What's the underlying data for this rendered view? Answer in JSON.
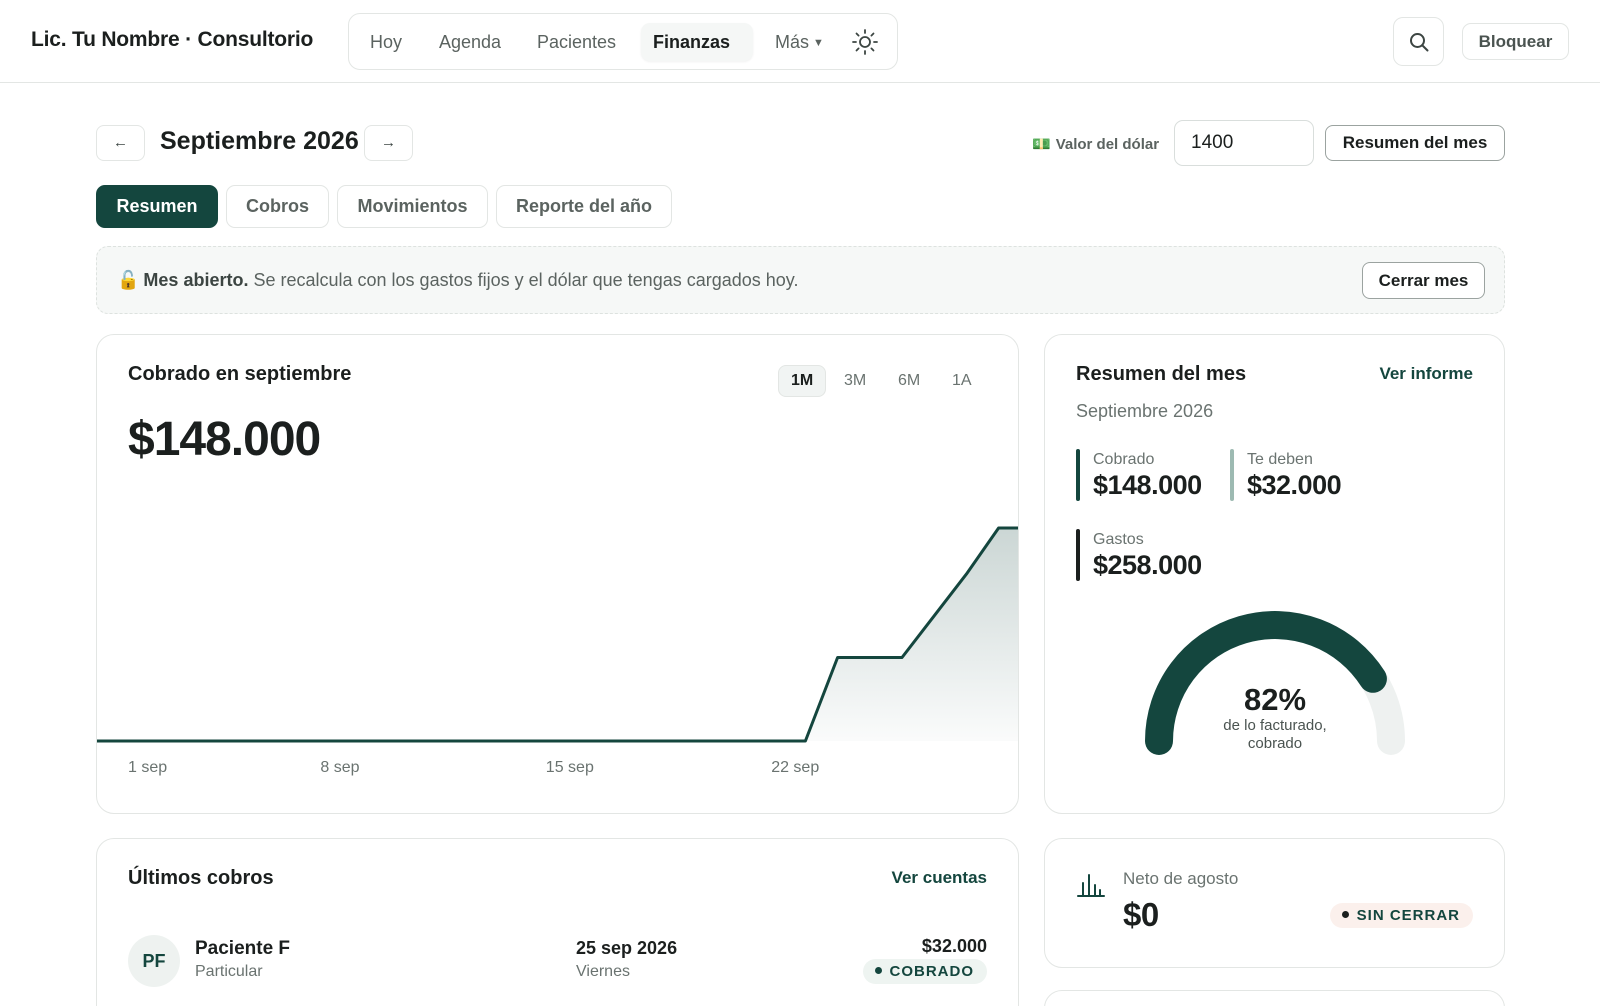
{
  "brand": "Lic. Tu Nombre · Consultorio",
  "nav": {
    "items": [
      {
        "label": "Hoy"
      },
      {
        "label": "Agenda"
      },
      {
        "label": "Pacientes"
      },
      {
        "label": "Finanzas",
        "active": true
      },
      {
        "label": "Más"
      }
    ],
    "theme_icon": "sun-icon"
  },
  "header_actions": {
    "search_icon": "search-icon",
    "lock_label": "Bloquear"
  },
  "month": {
    "prev_label": "←",
    "next_label": "→",
    "title": "Septiembre 2026"
  },
  "dollar": {
    "icon": "💵",
    "label": "Valor del dólar",
    "value": "1400"
  },
  "summary_button": "Resumen del mes",
  "tabs": [
    {
      "label": "Resumen",
      "active": true
    },
    {
      "label": "Cobros"
    },
    {
      "label": "Movimientos"
    },
    {
      "label": "Reporte del año"
    }
  ],
  "banner": {
    "icon": "🔓",
    "strong": "Mes abierto.",
    "text": "Se recalcula con los gastos fijos y el dólar que tengas cargados hoy.",
    "button": "Cerrar mes"
  },
  "collected_card": {
    "title": "Cobrado en septiembre",
    "amount": "$148.000",
    "ranges": [
      {
        "label": "1M",
        "active": true
      },
      {
        "label": "3M"
      },
      {
        "label": "6M"
      },
      {
        "label": "1A"
      }
    ],
    "x_ticks": [
      "1 sep",
      "8 sep",
      "15 sep",
      "22 sep"
    ]
  },
  "chart_data": {
    "type": "area",
    "title": "Cobrado en septiembre",
    "xlabel": "",
    "ylabel": "",
    "x_ticks": [
      "1 sep",
      "8 sep",
      "15 sep",
      "22 sep"
    ],
    "x": [
      1,
      2,
      3,
      4,
      5,
      6,
      7,
      8,
      9,
      10,
      11,
      12,
      13,
      14,
      15,
      16,
      17,
      18,
      19,
      20,
      21,
      22,
      23,
      24,
      25,
      26,
      27,
      28,
      29,
      30
    ],
    "series": [
      {
        "values": [
          0,
          0,
          0,
          0,
          0,
          0,
          0,
          0,
          0,
          0,
          0,
          0,
          0,
          0,
          0,
          0,
          0,
          0,
          0,
          0,
          0,
          0,
          0,
          58000,
          58000,
          58000,
          87000,
          116000,
          148000,
          148000
        ]
      }
    ],
    "ylim": [
      0,
      148000
    ],
    "grid": false,
    "cumulative": true,
    "color": "#14463e"
  },
  "month_summary": {
    "title": "Resumen del mes",
    "link": "Ver informe",
    "subtitle": "Septiembre 2026",
    "stats": [
      {
        "label": "Cobrado",
        "value": "$148.000",
        "color": "#14463e"
      },
      {
        "label": "Te deben",
        "value": "$32.000",
        "color": "#9dbab2"
      },
      {
        "label": "Gastos",
        "value": "$258.000",
        "color": "#1b1f1e"
      }
    ],
    "gauge": {
      "percent_label": "82%",
      "fraction": 0.82,
      "caption_line1": "de lo facturado,",
      "caption_line2": "cobrado",
      "color": "#14463e",
      "track_color": "#eef1f0"
    }
  },
  "recent": {
    "title": "Últimos cobros",
    "link": "Ver cuentas",
    "rows": [
      {
        "initials": "PF",
        "name": "Paciente F",
        "type": "Particular",
        "date": "25 sep 2026",
        "weekday": "Viernes",
        "amount": "$32.000",
        "status": "COBRADO"
      }
    ]
  },
  "net": {
    "icon": "bar-chart-icon",
    "label": "Neto de agosto",
    "value": "$0",
    "status": "SIN CERRAR"
  }
}
